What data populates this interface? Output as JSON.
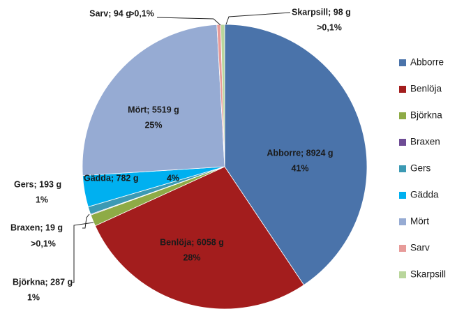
{
  "chart_data": {
    "type": "pie",
    "categories": [
      "Abborre",
      "Benlöja",
      "Björkna",
      "Braxen",
      "Gers",
      "Gädda",
      "Mört",
      "Sarv",
      "Skarpsill"
    ],
    "values": [
      8924,
      6058,
      287,
      19,
      193,
      782,
      5519,
      94,
      98
    ],
    "value_labels": [
      "Abborre; 8924 g",
      "Benlöja; 6058 g",
      "Björkna; 287 g",
      "Braxen; 19 g",
      "Gers; 193 g",
      "Gädda; 782 g",
      "Mört; 5519 g",
      "Sarv; 94 g",
      "Skarpsill; 98 g"
    ],
    "percent_labels": [
      "41%",
      "28%",
      "1%",
      ">0,1%",
      "1%",
      "4%",
      "25%",
      ">0,1%",
      ">0,1%"
    ],
    "colors": [
      "#4a73aa",
      "#a31d1d",
      "#8eab46",
      "#6e4c95",
      "#3c9ab4",
      "#00b0f0",
      "#96abd3",
      "#e79b99",
      "#b9d69c"
    ],
    "legend": "right"
  }
}
